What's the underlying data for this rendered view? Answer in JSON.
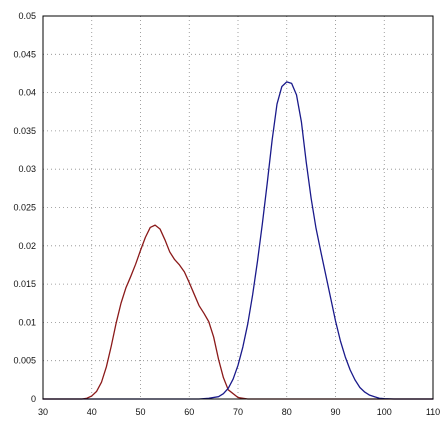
{
  "chart_data": {
    "type": "line",
    "title": "",
    "xlabel": "",
    "ylabel": "",
    "xlim": [
      30,
      110
    ],
    "ylim": [
      0,
      0.05
    ],
    "x_ticks": [
      30,
      40,
      50,
      60,
      70,
      80,
      90,
      100,
      110
    ],
    "x_tick_labels": [
      "30",
      "40",
      "50",
      "60",
      "70",
      "80",
      "90",
      "100",
      "110"
    ],
    "y_ticks": [
      0,
      0.005,
      0.01,
      0.015,
      0.02,
      0.025,
      0.03,
      0.035,
      0.04,
      0.045,
      0.05
    ],
    "y_tick_labels": [
      "0",
      "0.005",
      "0.01",
      "0.015",
      "0.02",
      "0.025",
      "0.03",
      "0.035",
      "0.04",
      "0.045",
      "0.05"
    ],
    "grid": true,
    "legend": "none",
    "series": [
      {
        "color": "#8b1a1a",
        "x": [
          30,
          38,
          39,
          40,
          41,
          42,
          43,
          44,
          45,
          46,
          47,
          48,
          49,
          50,
          51,
          52,
          53,
          54,
          55,
          56,
          57,
          58,
          59,
          60,
          61,
          62,
          63,
          64,
          65,
          66,
          67,
          68,
          70,
          72,
          75,
          110
        ],
        "y": [
          0,
          0,
          0.0001,
          0.0004,
          0.001,
          0.0022,
          0.0042,
          0.0069,
          0.0099,
          0.0125,
          0.0145,
          0.016,
          0.0176,
          0.0194,
          0.0211,
          0.0224,
          0.0227,
          0.0222,
          0.0208,
          0.0192,
          0.0182,
          0.0175,
          0.0166,
          0.0152,
          0.0137,
          0.0122,
          0.0112,
          0.0101,
          0.0081,
          0.0052,
          0.0028,
          0.0012,
          0.0002,
          0,
          0,
          0
        ]
      },
      {
        "color": "#1a1a8b",
        "x": [
          30,
          62,
          64,
          66,
          67,
          68,
          69,
          70,
          71,
          72,
          73,
          74,
          75,
          76,
          77,
          78,
          79,
          80,
          81,
          82,
          83,
          84,
          85,
          86,
          87,
          88,
          89,
          90,
          91,
          92,
          93,
          94,
          95,
          96,
          97,
          98,
          99,
          100,
          102,
          110
        ],
        "y": [
          0,
          0,
          0.0001,
          0.0003,
          0.0007,
          0.0014,
          0.0026,
          0.0044,
          0.0068,
          0.0098,
          0.0136,
          0.018,
          0.0229,
          0.0282,
          0.0338,
          0.0385,
          0.0408,
          0.0414,
          0.0412,
          0.0397,
          0.0362,
          0.0309,
          0.0262,
          0.0223,
          0.0192,
          0.0162,
          0.0132,
          0.0102,
          0.0076,
          0.0055,
          0.0038,
          0.0025,
          0.0015,
          0.0009,
          0.0005,
          0.0003,
          0.0001,
          5e-05,
          0,
          0
        ]
      }
    ]
  }
}
